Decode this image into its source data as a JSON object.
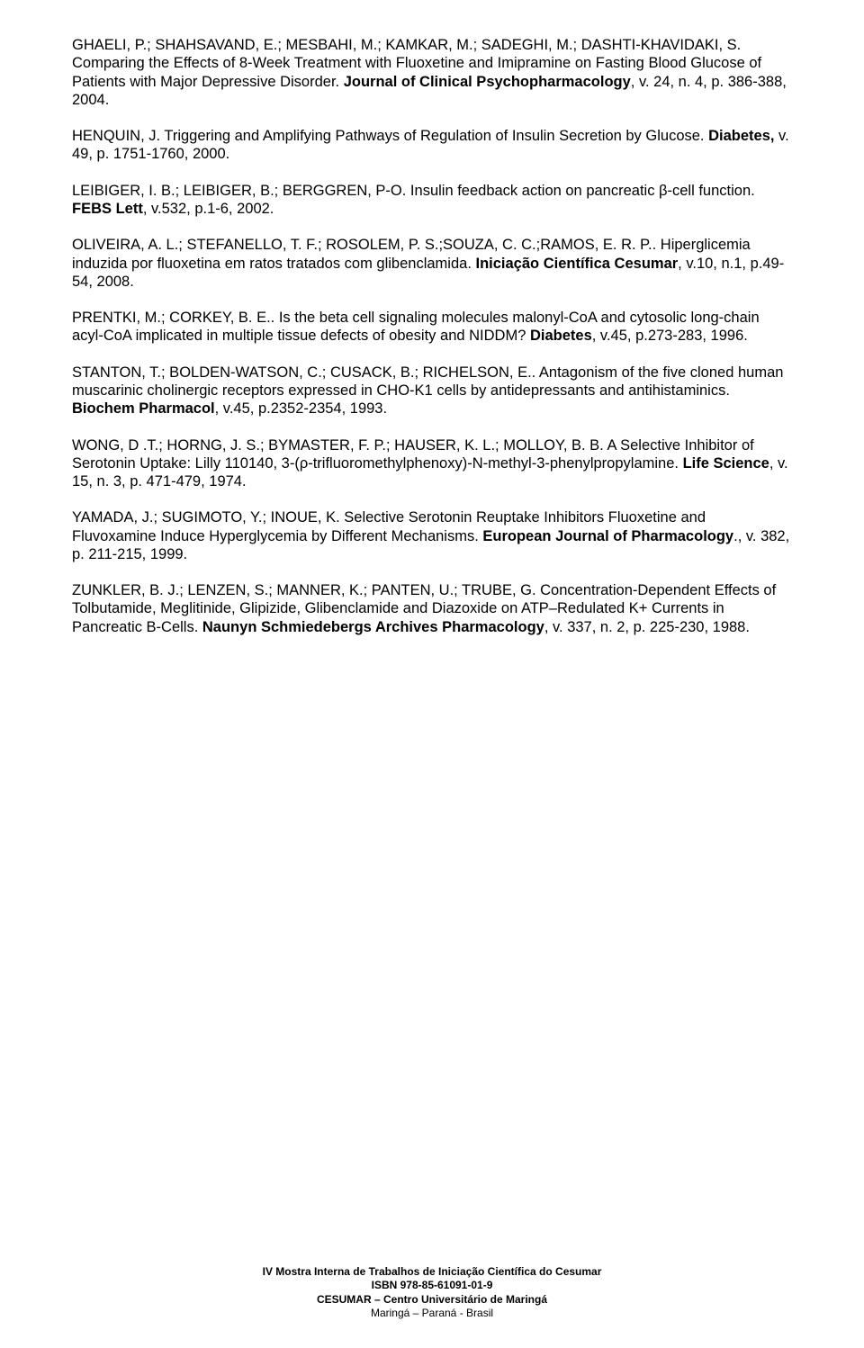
{
  "references": [
    {
      "html": "GHAELI, P.; SHAHSAVAND, E.; MESBAHI, M.; KAMKAR, M.; SADEGHI, M.; DASHTI-KHAVIDAKI, S. Comparing the Effects of 8-Week Treatment with Fluoxetine and Imipramine on Fasting Blood Glucose of Patients with Major Depressive Disorder. <b>Journal of Clinical Psychopharmacology</b>, v. 24,  n. 4,  p. 386-388, 2004."
    },
    {
      "html": "HENQUIN, J. Triggering and Amplifying Pathways of Regulation of Insulin Secretion by Glucose.  <b>Diabetes,</b> v. 49, p. 1751-1760, 2000."
    },
    {
      "html": "LEIBIGER, I. B.; LEIBIGER, B.; BERGGREN, P-O. Insulin feedback action on pancreatic β-cell function. <b>FEBS Lett</b>, v.532, p.1-6, 2002."
    },
    {
      "html": "OLIVEIRA, A. L.; STEFANELLO, T. F.; ROSOLEM, P. S.;SOUZA, C. C.;RAMOS, E. R. P.. Hiperglicemia induzida por fluoxetina em ratos tratados com glibenclamida. <b>Iniciação Científica Cesumar</b>, v.10, n.1, p.49-54, 2008."
    },
    {
      "html": "PRENTKI, M.; CORKEY, B. E.. Is the beta cell signaling molecules malonyl-CoA and cytosolic long-chain acyl-CoA implicated in multiple tissue defects of obesity and NIDDM? <b>Diabetes</b>, v.45, p.273-283, 1996."
    },
    {
      "html": "STANTON, T.; BOLDEN-WATSON, C.; CUSACK, B.; RICHELSON, E.. Antagonism of the five cloned human muscarinic cholinergic receptors expressed in CHO-K1 cells by antidepressants and antihistaminics. <b>Biochem Pharmacol</b>, v.45, p.2352-2354, 1993."
    },
    {
      "html": "WONG, D .T.; HORNG, J. S.; BYMASTER, F. P.; HAUSER, K. L.; MOLLOY, B. B.   A Selective Inhibitor of Serotonin Uptake: Lilly 110140, 3-(ρ-trifluoromethylphenoxy)-N-methyl-3-phenylpropylamine. <b>Life Science</b>, v. 15, n. 3, p. 471-479, 1974."
    },
    {
      "html": "YAMADA, J.; SUGIMOTO, Y.; INOUE, K.   Selective Serotonin Reuptake Inhibitors Fluoxetine and Fluvoxamine Induce Hyperglycemia by Different Mechanisms.  <b>European Journal of Pharmacology</b>., v. 382, p. 211-215, 1999."
    },
    {
      "html": "ZUNKLER, B. J.; LENZEN, S.; MANNER, K.; PANTEN, U.; TRUBE, G.  Concentration-Dependent Effects of Tolbutamide, Meglitinide, Glipizide, Glibenclamide and Diazoxide on ATP–Redulated K+ Currents in Pancreatic B-Cells.  <b>Naunyn Schmiedebergs Archives Pharmacology</b>, v. 337, n. 2, p. 225-230, 1988."
    }
  ],
  "footer": {
    "line1": "IV Mostra Interna de Trabalhos de Iniciação Científica do Cesumar",
    "line2": "ISBN 978-85-61091-01-9",
    "line3": "CESUMAR – Centro Universitário de Maringá",
    "line4": "Maringá – Paraná - Brasil"
  }
}
